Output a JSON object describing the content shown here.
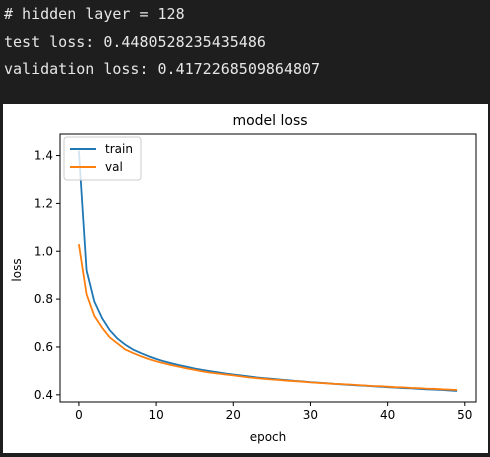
{
  "console": {
    "lines": [
      "# hidden layer = 128",
      "test loss: 0.4480528235435486",
      "validation loss: 0.4172268509864807"
    ]
  },
  "chart_data": {
    "type": "line",
    "title": "model loss",
    "xlabel": "epoch",
    "ylabel": "loss",
    "xlim": [
      -2.45,
      51.45
    ],
    "ylim": [
      0.37,
      1.49
    ],
    "xticks": [
      0,
      10,
      20,
      30,
      40,
      50
    ],
    "yticks": [
      0.4,
      0.6,
      0.8,
      1.0,
      1.2,
      1.4
    ],
    "ytick_labels": [
      "0.4",
      "0.6",
      "0.8",
      "1.0",
      "1.2",
      "1.4"
    ],
    "grid": false,
    "legend_position": "upper left",
    "series": [
      {
        "name": "train",
        "color": "#1f77b4",
        "x": [
          0,
          1,
          2,
          3,
          4,
          5,
          6,
          7,
          8,
          9,
          10,
          11,
          12,
          13,
          14,
          15,
          16,
          17,
          18,
          19,
          20,
          21,
          22,
          23,
          24,
          25,
          26,
          27,
          28,
          29,
          30,
          31,
          32,
          33,
          34,
          35,
          36,
          37,
          38,
          39,
          40,
          41,
          42,
          43,
          44,
          45,
          46,
          47,
          48,
          49
        ],
        "y": [
          1.42,
          0.92,
          0.79,
          0.72,
          0.67,
          0.635,
          0.61,
          0.59,
          0.575,
          0.562,
          0.55,
          0.54,
          0.532,
          0.524,
          0.517,
          0.51,
          0.504,
          0.499,
          0.494,
          0.489,
          0.485,
          0.481,
          0.477,
          0.473,
          0.47,
          0.467,
          0.464,
          0.461,
          0.458,
          0.456,
          0.453,
          0.451,
          0.449,
          0.446,
          0.444,
          0.442,
          0.44,
          0.438,
          0.436,
          0.434,
          0.432,
          0.43,
          0.428,
          0.427,
          0.425,
          0.423,
          0.422,
          0.42,
          0.418,
          0.416
        ]
      },
      {
        "name": "val",
        "color": "#ff7f0e",
        "x": [
          0,
          1,
          2,
          3,
          4,
          5,
          6,
          7,
          8,
          9,
          10,
          11,
          12,
          13,
          14,
          15,
          16,
          17,
          18,
          19,
          20,
          21,
          22,
          23,
          24,
          25,
          26,
          27,
          28,
          29,
          30,
          31,
          32,
          33,
          34,
          35,
          36,
          37,
          38,
          39,
          40,
          41,
          42,
          43,
          44,
          45,
          46,
          47,
          48,
          49
        ],
        "y": [
          1.03,
          0.82,
          0.73,
          0.68,
          0.64,
          0.615,
          0.59,
          0.575,
          0.562,
          0.55,
          0.54,
          0.532,
          0.524,
          0.517,
          0.51,
          0.504,
          0.498,
          0.493,
          0.489,
          0.485,
          0.481,
          0.477,
          0.473,
          0.47,
          0.467,
          0.464,
          0.462,
          0.459,
          0.457,
          0.455,
          0.452,
          0.45,
          0.448,
          0.446,
          0.445,
          0.443,
          0.441,
          0.439,
          0.437,
          0.436,
          0.434,
          0.432,
          0.431,
          0.429,
          0.428,
          0.426,
          0.425,
          0.423,
          0.422,
          0.42
        ]
      }
    ]
  }
}
